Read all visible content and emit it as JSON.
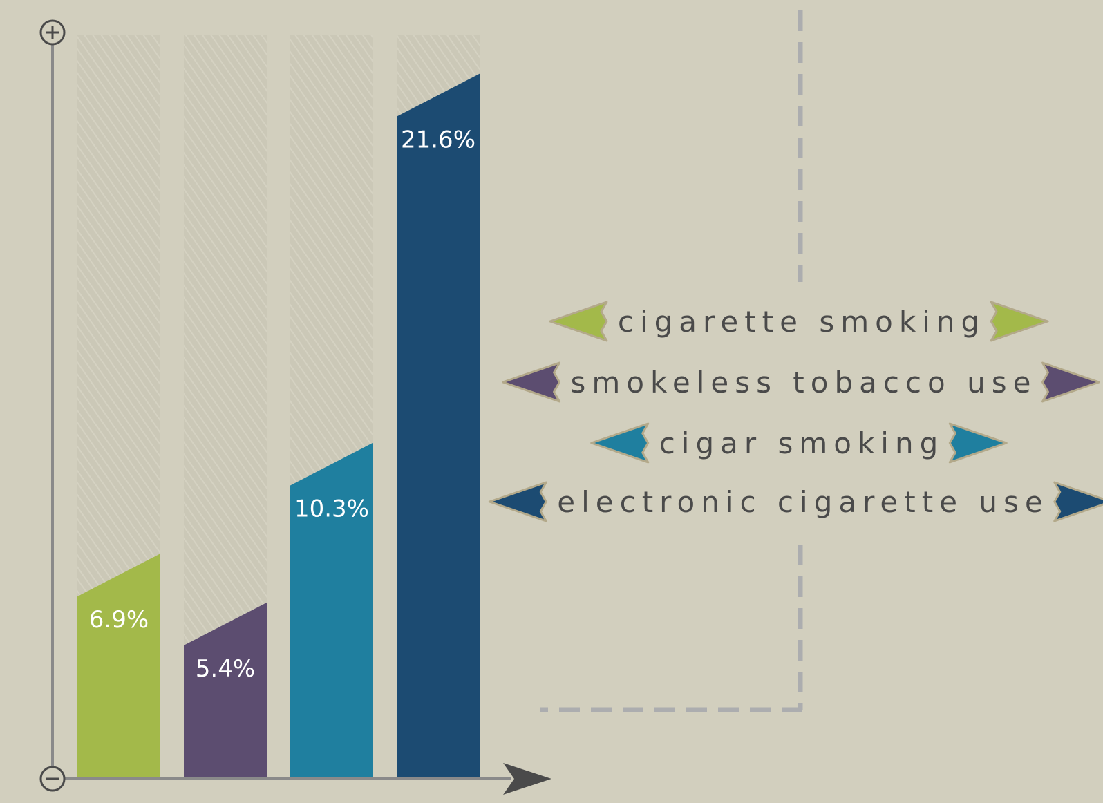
{
  "chart_data": {
    "type": "bar",
    "categories": [
      "cigarette smoking",
      "smokeless tobacco use",
      "cigar smoking",
      "electronic cigarette use"
    ],
    "values": [
      6.9,
      5.4,
      10.3,
      21.6
    ],
    "value_labels": [
      "6.9%",
      "5.4%",
      "10.3%",
      "21.6%"
    ],
    "ylim": [
      0,
      22.8
    ],
    "grid": false,
    "legend_position": "right",
    "colors": [
      "#a3b94a",
      "#5c4d70",
      "#1f7f9f",
      "#1c4b72"
    ]
  },
  "axis": {
    "y_top_icon": "plus-icon",
    "y_bottom_icon": "minus-icon",
    "x_end_icon": "arrow-right-icon"
  },
  "theme": {
    "background": "#d2cfbe",
    "track": "#cbc8b7",
    "axis": "#8a8a8a",
    "dashed_line": "#acadaf",
    "arrow": "#4a4a4a"
  }
}
